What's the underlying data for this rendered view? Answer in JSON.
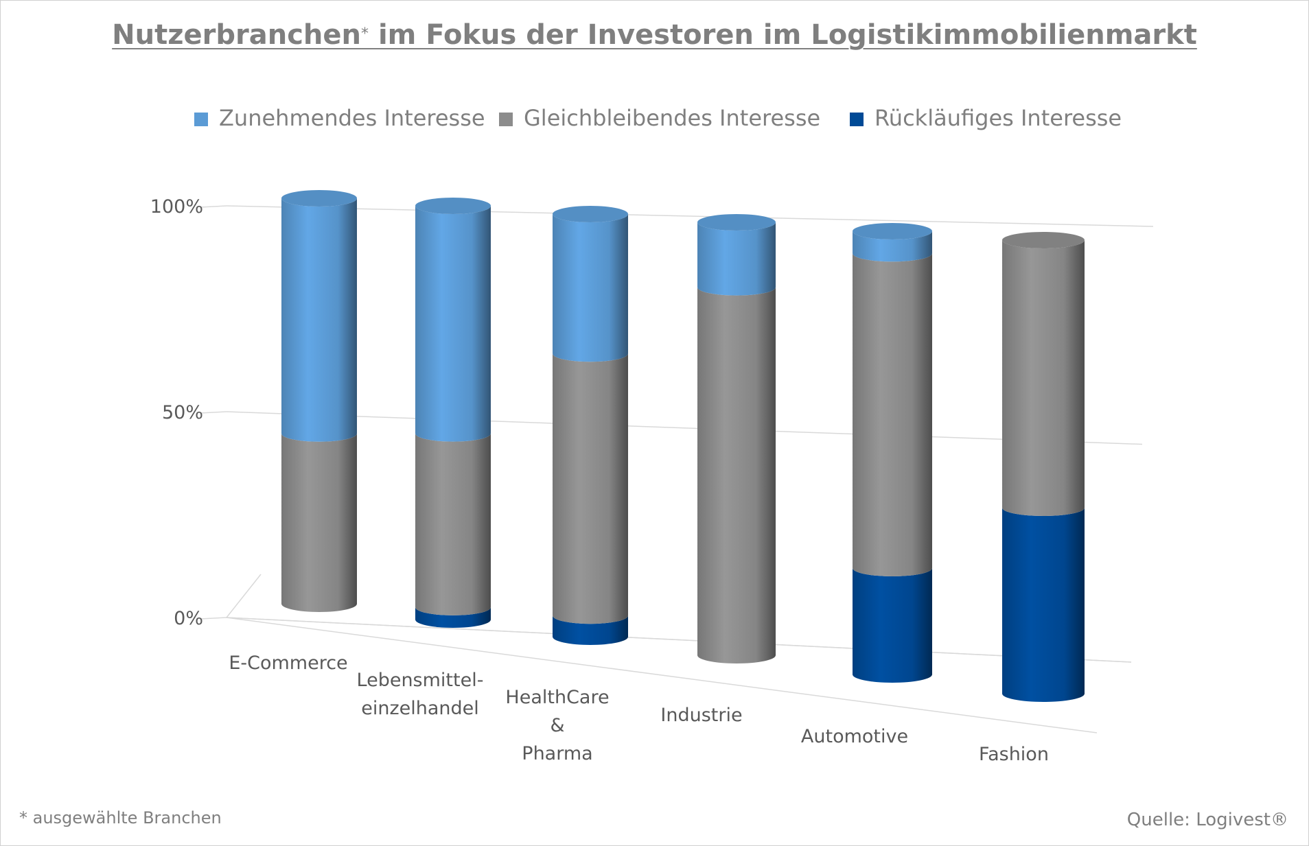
{
  "chart_data": {
    "type": "bar",
    "stacked": true,
    "shape": "cylinder-3d",
    "title": "Nutzerbranchen",
    "title_star": "*",
    "title_rest": " im Fokus der Investoren im Logistikimmobilienmarkt",
    "categories": [
      "E-Commerce",
      "Lebensmittel-\neinzelhandel",
      "HealthCare\n&\nPharma",
      "Industrie",
      "Automotive",
      "Fashion"
    ],
    "series": [
      {
        "name": "Rückläufiges Interesse",
        "color": "#004a96",
        "values": [
          0,
          3,
          5,
          0,
          24,
          41
        ]
      },
      {
        "name": "Gleichbleibendes Interesse",
        "color": "#8c8c8c",
        "values": [
          42,
          42,
          62,
          85,
          71,
          59
        ]
      },
      {
        "name": "Zunehmendes Interesse",
        "color": "#5b9bd5",
        "values": [
          58,
          55,
          33,
          15,
          5,
          0
        ]
      }
    ],
    "legend_order": [
      "Zunehmendes Interesse",
      "Gleichbleibendes Interesse",
      "Rückläufiges Interesse"
    ],
    "ylim": [
      0,
      100
    ],
    "yticks": [
      "0%",
      "50%",
      "100%"
    ],
    "grid": true,
    "legend_position": "top"
  },
  "footnote": "* ausgewählte Branchen",
  "source": "Quelle: Logivest®"
}
